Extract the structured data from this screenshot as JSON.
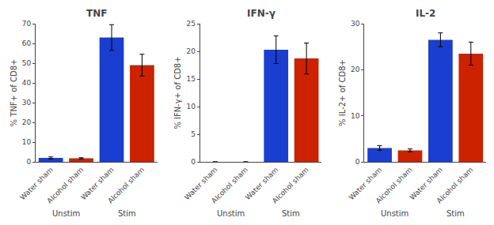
{
  "chart_data": [
    {
      "type": "bar",
      "title": "TNF",
      "ylabel": "% TNF+ of CD8+",
      "categories": [
        "Water sham",
        "Alcohol sham",
        "Water sham",
        "Alcohol sham"
      ],
      "groups": [
        "Unstim",
        "Unstim",
        "Stim",
        "Stim"
      ],
      "values": [
        2.0,
        1.8,
        63.0,
        49.0
      ],
      "errors": [
        0.5,
        0.3,
        6.5,
        5.5
      ],
      "colors": [
        "#1a3ecf",
        "#cc2200",
        "#1a3ecf",
        "#cc2200"
      ],
      "ylim": [
        0,
        70
      ],
      "yticks": [
        0,
        10,
        20,
        30,
        40,
        50,
        60,
        70
      ],
      "grid": false
    },
    {
      "type": "bar",
      "title": "IFN-γ",
      "ylabel": "% IFN-γ+ of CD8+",
      "categories": [
        "Water sham",
        "Alcohol sham",
        "Water sham",
        "Alcohol sham"
      ],
      "groups": [
        "Unstim",
        "Unstim",
        "Stim",
        "Stim"
      ],
      "values": [
        0.0,
        0.0,
        20.3,
        18.7
      ],
      "errors": [
        0.0,
        0.0,
        2.5,
        2.8
      ],
      "colors": [
        "#1a3ecf",
        "#cc2200",
        "#1a3ecf",
        "#cc2200"
      ],
      "ylim": [
        0,
        25
      ],
      "yticks": [
        0,
        5,
        10,
        15,
        20,
        25
      ],
      "grid": false
    },
    {
      "type": "bar",
      "title": "IL-2",
      "ylabel": "% IL-2+ of CD8+",
      "categories": [
        "Water sham",
        "Alcohol sham",
        "Water sham",
        "Alcohol sham"
      ],
      "groups": [
        "Unstim",
        "Unstim",
        "Stim",
        "Stim"
      ],
      "values": [
        3.0,
        2.5,
        26.5,
        23.5
      ],
      "errors": [
        0.5,
        0.3,
        1.5,
        2.5
      ],
      "colors": [
        "#1a3ecf",
        "#cc2200",
        "#1a3ecf",
        "#cc2200"
      ],
      "ylim": [
        0,
        30
      ],
      "yticks": [
        0,
        10,
        20,
        30
      ],
      "grid": false
    }
  ]
}
